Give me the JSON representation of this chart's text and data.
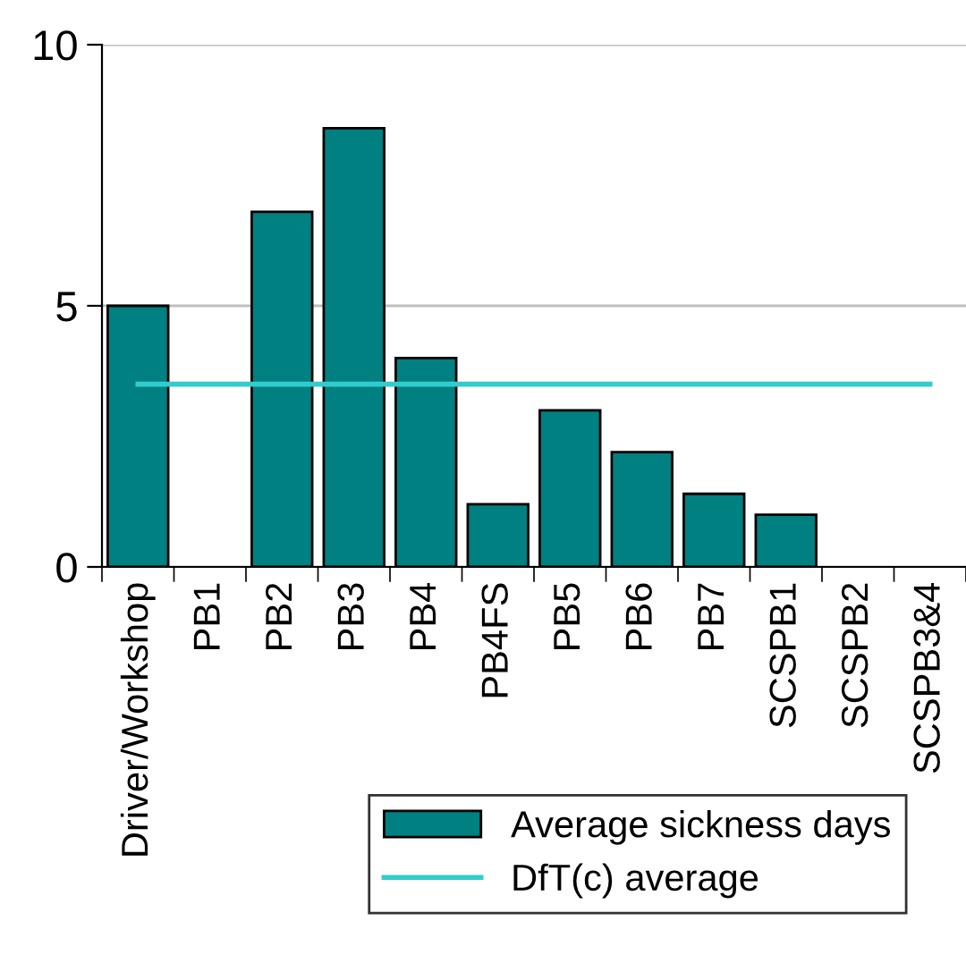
{
  "chart_data": {
    "type": "bar",
    "categories": [
      "Driver/Workshop",
      "PB1",
      "PB2",
      "PB3",
      "PB4",
      "PB4FS",
      "PB5",
      "PB6",
      "PB7",
      "SCSPB1",
      "SCSPB2",
      "SCSPB3&4"
    ],
    "series": [
      {
        "name": "Average sickness days",
        "color": "#008080",
        "values": [
          5.0,
          null,
          6.8,
          8.4,
          4.0,
          1.2,
          3.0,
          2.2,
          1.4,
          1.0,
          null,
          null
        ]
      },
      {
        "name": "DfT(c) average",
        "type": "line",
        "color": "#33cccc",
        "values": [
          3.5,
          3.5,
          3.5,
          3.5,
          3.5,
          3.5,
          3.5,
          3.5,
          3.5,
          3.5,
          3.5,
          3.5
        ]
      }
    ],
    "ylim": [
      0,
      10
    ],
    "yticks": [
      0,
      5,
      10
    ],
    "grid": "y",
    "legend": "bottom"
  }
}
